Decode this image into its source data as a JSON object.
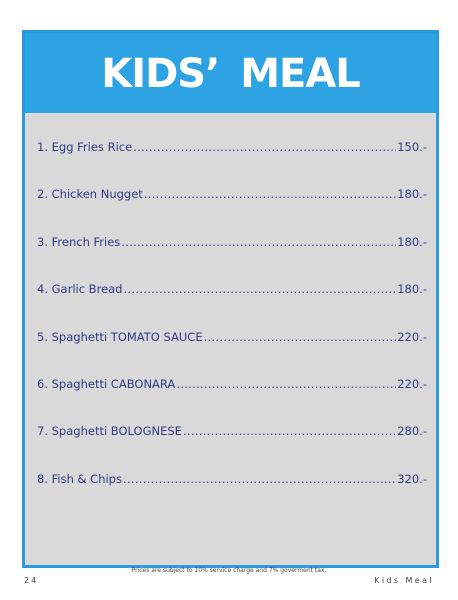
{
  "header": {
    "title": "KIDS’ MEAL"
  },
  "menu": {
    "items": [
      {
        "name": "1. Egg Fries Rice",
        "price": "150.-"
      },
      {
        "name": "2. Chicken Nugget",
        "price": "180.-"
      },
      {
        "name": "3. French Fries",
        "price": "180.-"
      },
      {
        "name": "4. Garlic Bread",
        "price": "180.-"
      },
      {
        "name": "5. Spaghetti TOMATO SAUCE",
        "price": "220.-"
      },
      {
        "name": "6. Spaghetti CABONARA",
        "price": "220.-"
      },
      {
        "name": "7. Spaghetti BOLOGNESE",
        "price": "280.-"
      },
      {
        "name": "8. Fish & Chips",
        "price": "320.-"
      }
    ]
  },
  "footer": {
    "note": "Prices are subject to 10% service charge and 7% goverment tax.",
    "page_number": "24",
    "section": "Kids Meal"
  },
  "colors": {
    "accent": "#2ea3e3",
    "panel": "#d9d9d9",
    "item_text": "#2f3a85",
    "title_text": "#ffffff"
  }
}
